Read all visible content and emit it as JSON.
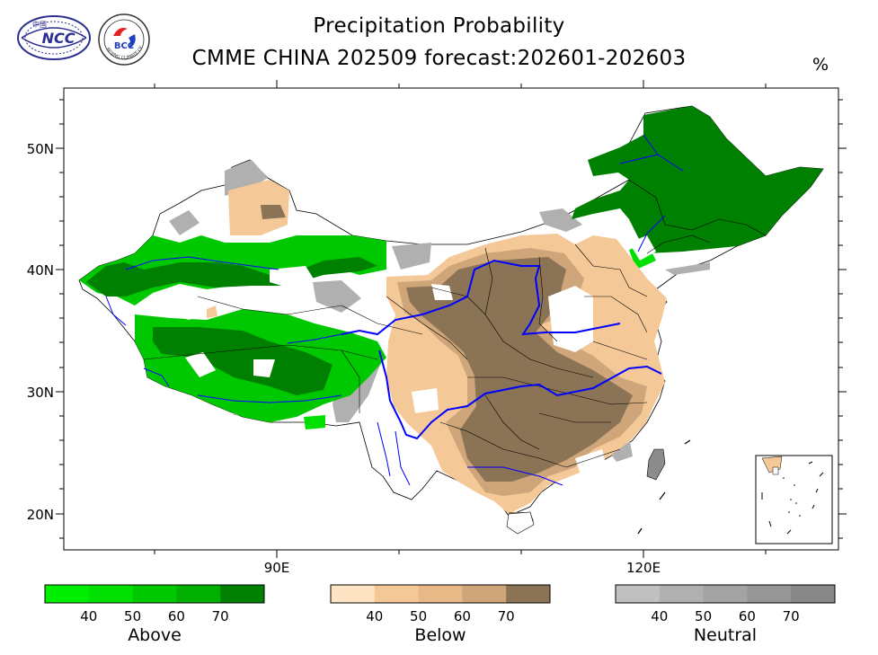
{
  "header": {
    "title_line1": "Precipitation Probability",
    "title_line2": "CMME CHINA 202509 forecast:202601-202603",
    "unit": "%"
  },
  "logos": {
    "ncc_text": "NCC",
    "ncc_cn_text": "中国",
    "bcc_text": "BCC",
    "bcc_ring_text": "BEIJING CLIMATE CENTER"
  },
  "map": {
    "lat_labels": [
      "50N",
      "40N",
      "30N",
      "20N"
    ],
    "lon_labels": [
      "90E",
      "120E"
    ],
    "categories": {
      "above_color": "#008000",
      "below_color": "#8b7355",
      "neutral_color": "#8c8c8c",
      "river_color": "#0000ff"
    }
  },
  "colorbars": [
    {
      "title": "Above",
      "ticks": [
        "40",
        "50",
        "60",
        "70"
      ],
      "colors": [
        "#00ee00",
        "#00e000",
        "#00c800",
        "#00b000",
        "#008000"
      ]
    },
    {
      "title": "Below",
      "ticks": [
        "40",
        "50",
        "60",
        "70"
      ],
      "colors": [
        "#ffe4c4",
        "#f5c898",
        "#e8b887",
        "#cfa57a",
        "#8b7355"
      ]
    },
    {
      "title": "Neutral",
      "ticks": [
        "40",
        "50",
        "60",
        "70"
      ],
      "colors": [
        "#c0c0c0",
        "#b0b0b0",
        "#a3a3a3",
        "#969696",
        "#888888"
      ]
    }
  ]
}
